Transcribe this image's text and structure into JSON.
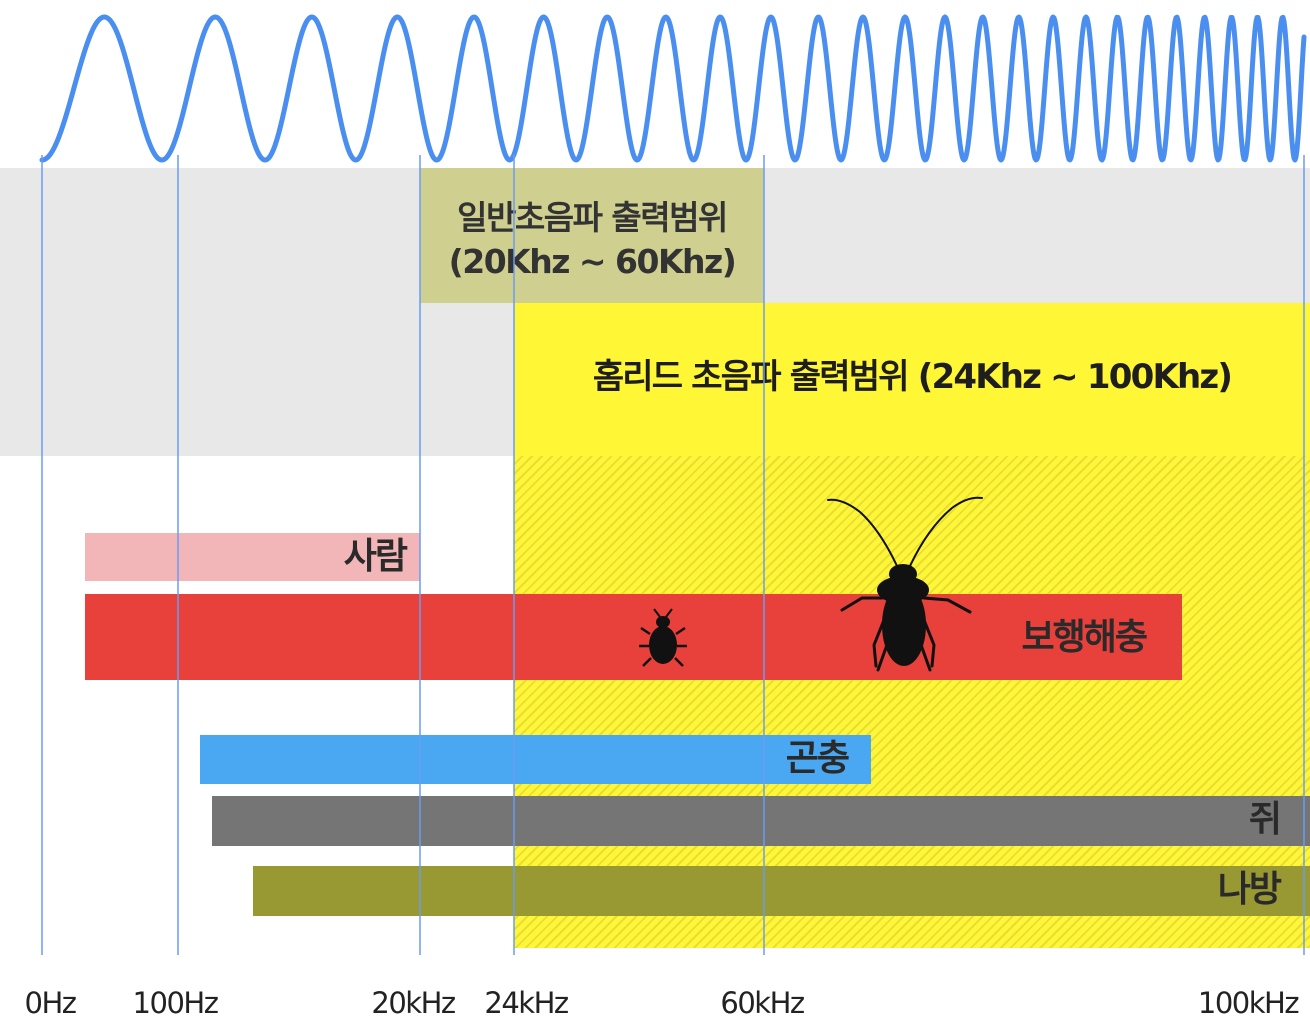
{
  "general_range": {
    "line1": "일반초음파 출력범위",
    "line2": "(20Khz ~ 60Khz)"
  },
  "homlead_range": {
    "label": "홈리드 초음파 출력범위 (24Khz ~ 100Khz)"
  },
  "bars": [
    {
      "name": "사람",
      "color": "#f3b6b8",
      "text_color": "#2a2a2a"
    },
    {
      "name": "보행해충",
      "color": "#e8403a",
      "text_color": "#2a2a2a"
    },
    {
      "name": "곤충",
      "color": "#4aa8f3",
      "text_color": "#2a2a2a"
    },
    {
      "name": "쥐",
      "color": "#757575",
      "text_color": "#2a2a2a"
    },
    {
      "name": "나방",
      "color": "#999933",
      "text_color": "#2a2a2a"
    }
  ],
  "axis_ticks": [
    "0Hz",
    "100Hz",
    "20kHz",
    "24kHz",
    "60kHz",
    "100kHz"
  ],
  "colors": {
    "wave": "#4a8ff0",
    "guide_line": "#6b9cf2",
    "gray_band": "#e8e8e8",
    "general_box": "#cfd08f",
    "homlead_yellow": "#fff636"
  },
  "icons": [
    "small-beetle-icon",
    "cockroach-icon"
  ]
}
